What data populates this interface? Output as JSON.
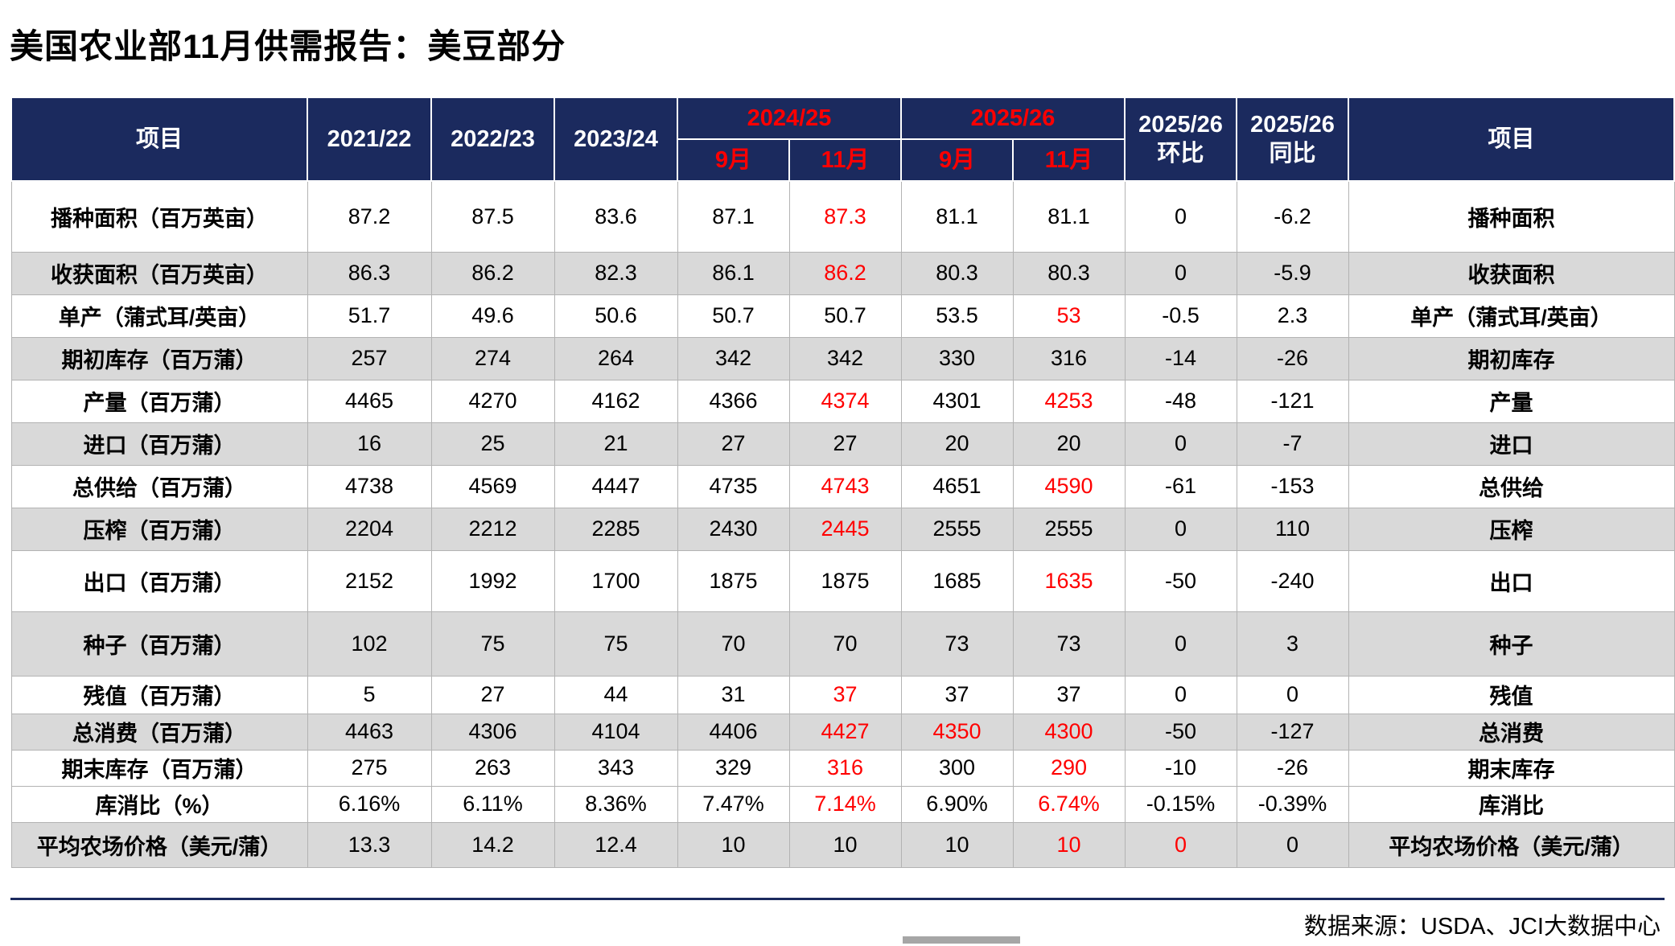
{
  "title": "美国农业部11月供需报告：美豆部分",
  "source": "数据来源：USDA、JCI大数据中心",
  "colors": {
    "header_bg": "#1B2A5E",
    "highlight_red": "#FF0000",
    "shaded_row": "#D9D9D9",
    "grid_line": "#B3B3B3"
  },
  "table": {
    "header": {
      "item_left": "项目",
      "years": [
        "2021/22",
        "2022/23",
        "2023/24"
      ],
      "groups": [
        {
          "label": "2024/25",
          "months": [
            "9月",
            "11月"
          ]
        },
        {
          "label": "2025/26",
          "months": [
            "9月",
            "11月"
          ]
        }
      ],
      "mom": {
        "line1": "2025/26",
        "line2": "环比"
      },
      "yoy": {
        "line1": "2025/26",
        "line2": "同比"
      },
      "item_right": "项目"
    },
    "rows": [
      {
        "label": "播种面积（百万英亩）",
        "label_right": "播种面积",
        "shaded": false,
        "values": [
          "87.2",
          "87.5",
          "83.6",
          "87.1",
          "87.3",
          "81.1",
          "81.1",
          "0",
          "-6.2"
        ],
        "red_indices": [
          4
        ]
      },
      {
        "label": "收获面积（百万英亩）",
        "label_right": "收获面积",
        "shaded": true,
        "values": [
          "86.3",
          "86.2",
          "82.3",
          "86.1",
          "86.2",
          "80.3",
          "80.3",
          "0",
          "-5.9"
        ],
        "red_indices": [
          4
        ]
      },
      {
        "label": "单产（蒲式耳/英亩）",
        "label_right": "单产（蒲式耳/英亩）",
        "shaded": false,
        "values": [
          "51.7",
          "49.6",
          "50.6",
          "50.7",
          "50.7",
          "53.5",
          "53",
          "-0.5",
          "2.3"
        ],
        "red_indices": [
          6
        ]
      },
      {
        "label": "期初库存（百万蒲）",
        "label_right": "期初库存",
        "shaded": true,
        "values": [
          "257",
          "274",
          "264",
          "342",
          "342",
          "330",
          "316",
          "-14",
          "-26"
        ],
        "red_indices": []
      },
      {
        "label": "产量（百万蒲）",
        "label_right": "产量",
        "shaded": false,
        "values": [
          "4465",
          "4270",
          "4162",
          "4366",
          "4374",
          "4301",
          "4253",
          "-48",
          "-121"
        ],
        "red_indices": [
          4,
          6
        ]
      },
      {
        "label": "进口（百万蒲）",
        "label_right": "进口",
        "shaded": true,
        "values": [
          "16",
          "25",
          "21",
          "27",
          "27",
          "20",
          "20",
          "0",
          "-7"
        ],
        "red_indices": []
      },
      {
        "label": "总供给（百万蒲）",
        "label_right": "总供给",
        "shaded": false,
        "values": [
          "4738",
          "4569",
          "4447",
          "4735",
          "4743",
          "4651",
          "4590",
          "-61",
          "-153"
        ],
        "red_indices": [
          4,
          6
        ]
      },
      {
        "label": "压榨（百万蒲）",
        "label_right": "压榨",
        "shaded": true,
        "values": [
          "2204",
          "2212",
          "2285",
          "2430",
          "2445",
          "2555",
          "2555",
          "0",
          "110"
        ],
        "red_indices": [
          4
        ]
      },
      {
        "label": "出口（百万蒲）",
        "label_right": "出口",
        "shaded": false,
        "values": [
          "2152",
          "1992",
          "1700",
          "1875",
          "1875",
          "1685",
          "1635",
          "-50",
          "-240"
        ],
        "red_indices": [
          6
        ]
      },
      {
        "label": "种子（百万蒲）",
        "label_right": "种子",
        "shaded": true,
        "values": [
          "102",
          "75",
          "75",
          "70",
          "70",
          "73",
          "73",
          "0",
          "3"
        ],
        "red_indices": []
      },
      {
        "label": "残值（百万蒲）",
        "label_right": "残值",
        "shaded": false,
        "values": [
          "5",
          "27",
          "44",
          "31",
          "37",
          "37",
          "37",
          "0",
          "0"
        ],
        "red_indices": [
          4
        ]
      },
      {
        "label": "总消费（百万蒲）",
        "label_right": "总消费",
        "shaded": true,
        "values": [
          "4463",
          "4306",
          "4104",
          "4406",
          "4427",
          "4350",
          "4300",
          "-50",
          "-127"
        ],
        "red_indices": [
          4,
          5,
          6
        ]
      },
      {
        "label": "期末库存（百万蒲）",
        "label_right": "期末库存",
        "shaded": false,
        "values": [
          "275",
          "263",
          "343",
          "329",
          "316",
          "300",
          "290",
          "-10",
          "-26"
        ],
        "red_indices": [
          4,
          6
        ]
      },
      {
        "label": "库消比（%）",
        "label_right": "库消比",
        "shaded": false,
        "values": [
          "6.16%",
          "6.11%",
          "8.36%",
          "7.47%",
          "7.14%",
          "6.90%",
          "6.74%",
          "-0.15%",
          "-0.39%"
        ],
        "red_indices": [
          4,
          6
        ]
      },
      {
        "label": "平均农场价格（美元/蒲）",
        "label_right": "平均农场价格（美元/蒲）",
        "shaded": true,
        "values": [
          "13.3",
          "14.2",
          "12.4",
          "10",
          "10",
          "10",
          "10",
          "0",
          "0"
        ],
        "red_indices": [
          6,
          7
        ]
      }
    ]
  }
}
